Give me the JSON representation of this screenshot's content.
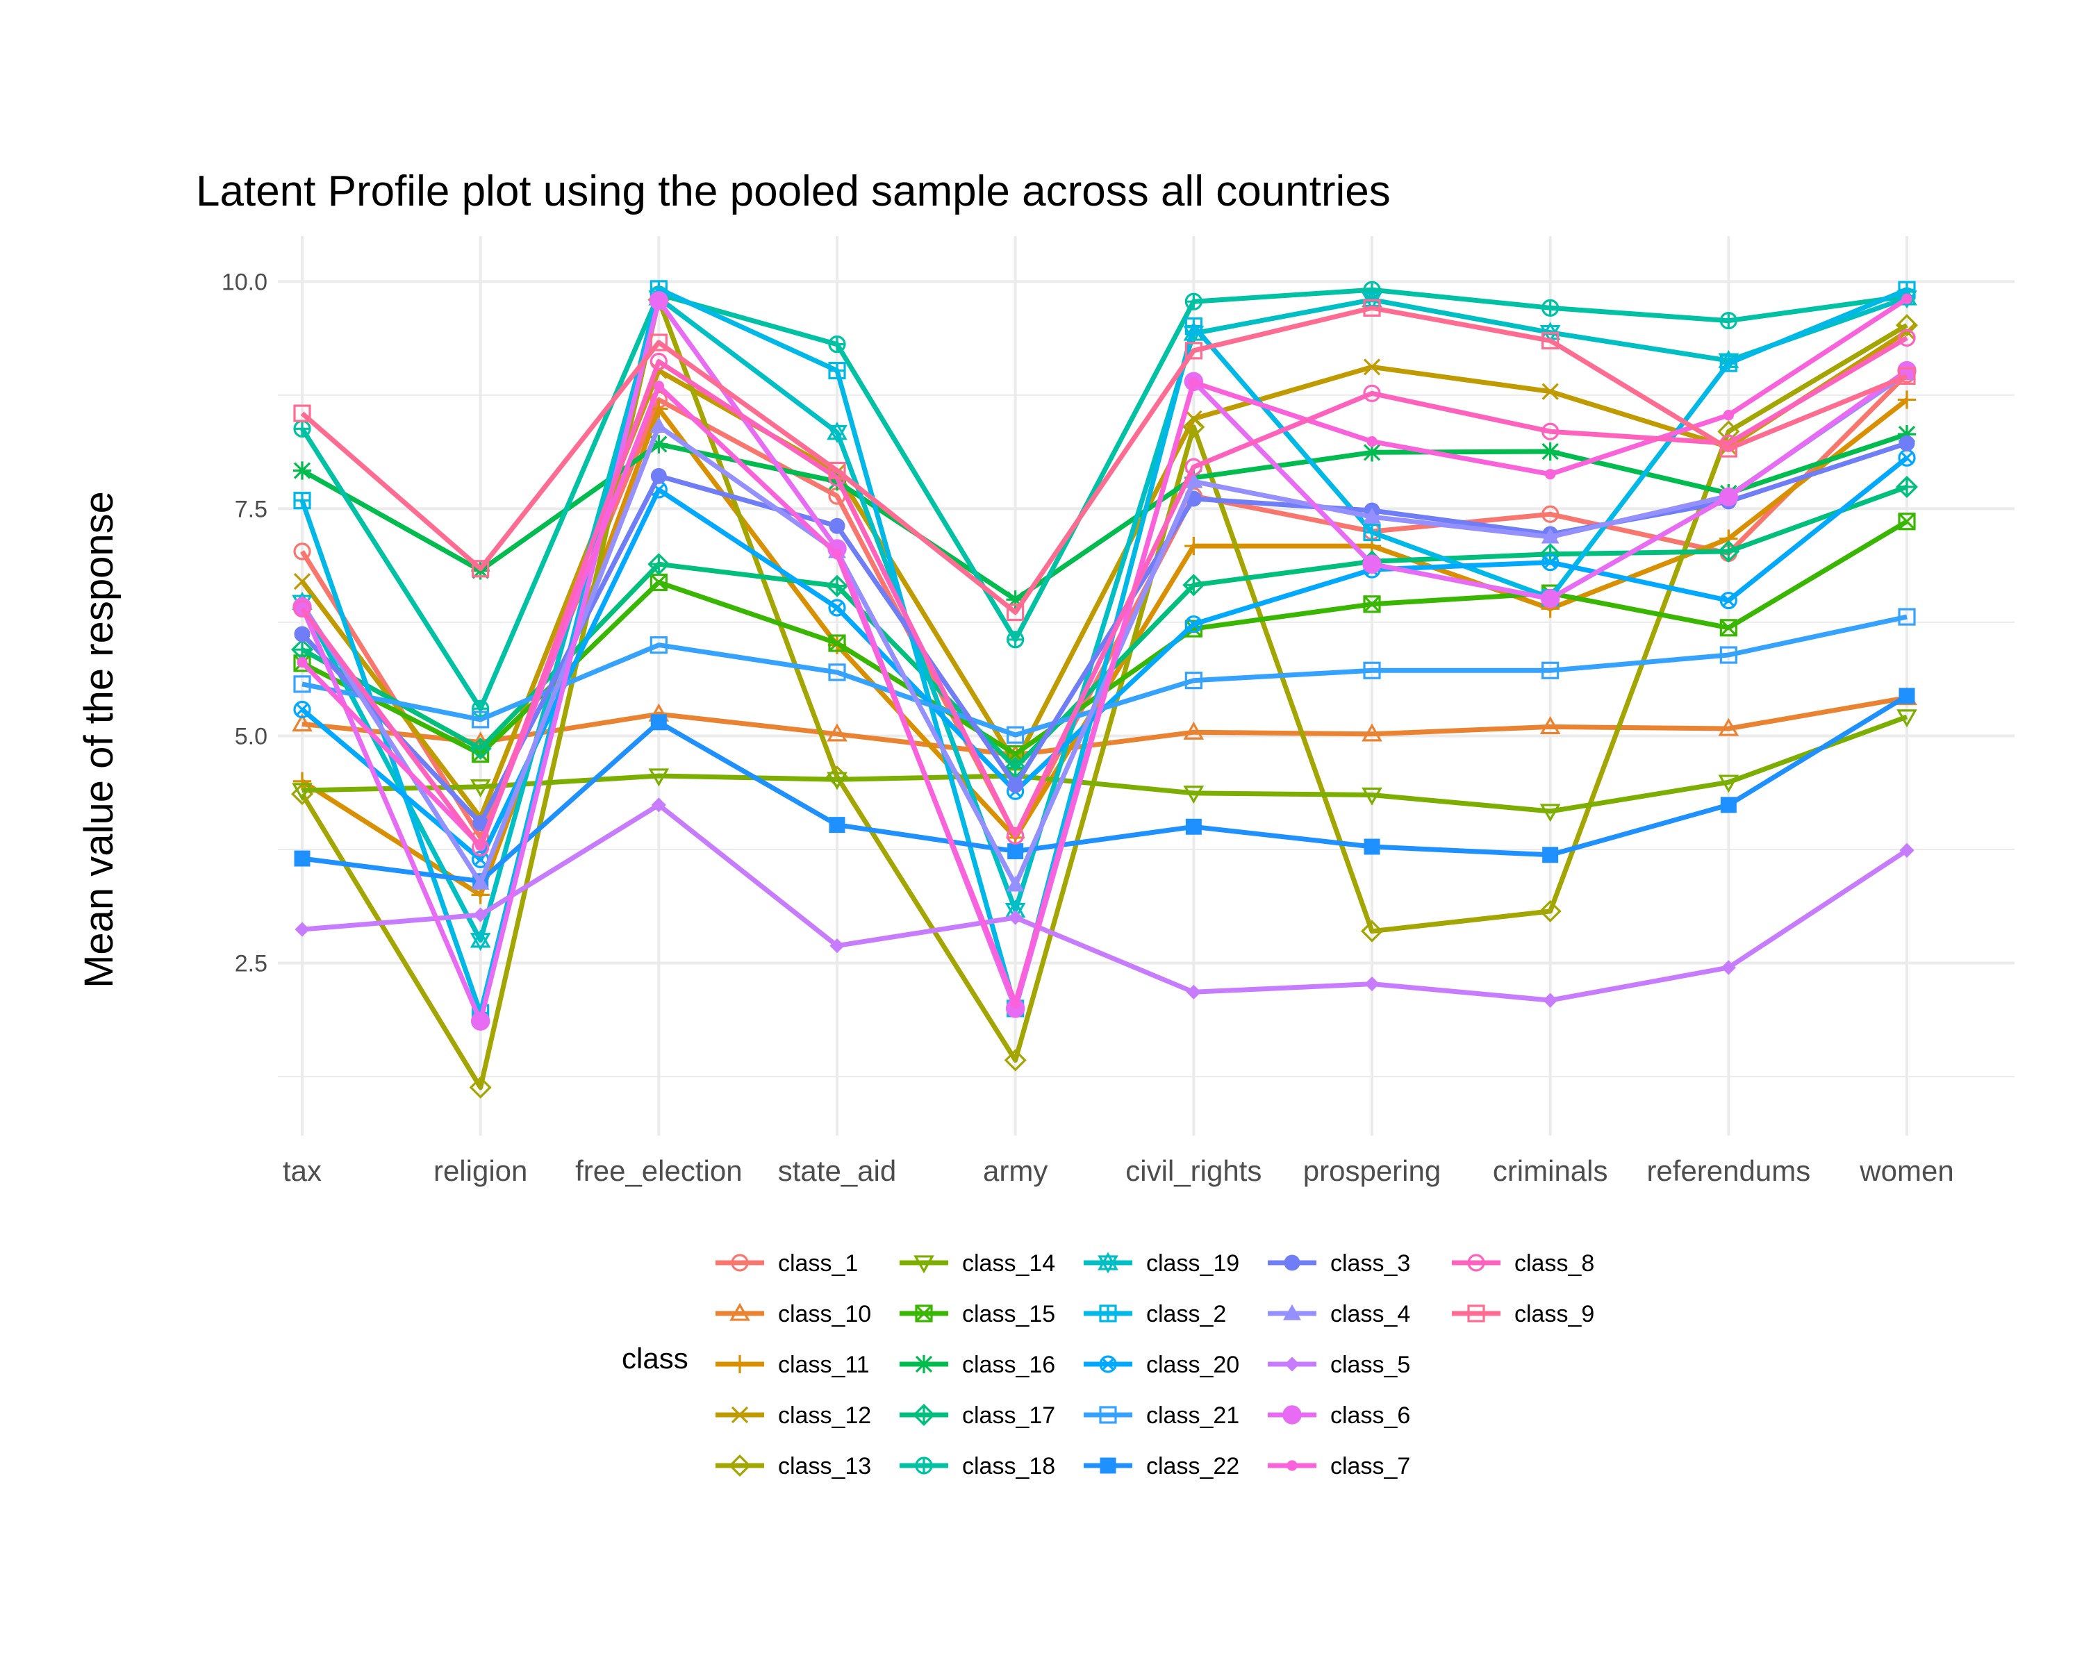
{
  "chart_data": {
    "type": "line",
    "title": "Latent Profile plot using the pooled sample across all countries",
    "xlabel": "",
    "ylabel": "Mean value of the response",
    "categories": [
      "tax",
      "religion",
      "free_election",
      "state_aid",
      "army",
      "civil_rights",
      "prospering",
      "criminals",
      "referendums",
      "women"
    ],
    "yticks": [
      "2.5",
      "5.0",
      "7.5",
      "10.0"
    ],
    "ylim": [
      0.6,
      10.5
    ],
    "grid": true,
    "legend_title": "class",
    "legend_position": "bottom",
    "series": [
      {
        "name": "class_1",
        "color": "#F8766D",
        "marker": "circle-open",
        "values": [
          7.03,
          3.88,
          8.7,
          7.64,
          3.9,
          7.64,
          7.25,
          7.44,
          7.01,
          8.98
        ]
      },
      {
        "name": "class_10",
        "color": "#EA8331",
        "marker": "triangle-open",
        "values": [
          5.13,
          4.93,
          5.24,
          5.02,
          4.79,
          5.04,
          5.02,
          5.1,
          5.08,
          5.42
        ]
      },
      {
        "name": "class_11",
        "color": "#D89000",
        "marker": "plus",
        "values": [
          4.5,
          3.25,
          8.6,
          6.0,
          3.88,
          7.09,
          7.09,
          6.4,
          7.17,
          8.7
        ]
      },
      {
        "name": "class_12",
        "color": "#C09B00",
        "marker": "x",
        "values": [
          6.7,
          4.1,
          9.02,
          7.9,
          4.7,
          8.49,
          9.06,
          8.79,
          8.18,
          9.45
        ]
      },
      {
        "name": "class_13",
        "color": "#A3A500",
        "marker": "diamond-open",
        "values": [
          4.36,
          1.13,
          9.8,
          4.55,
          1.43,
          8.4,
          2.85,
          3.07,
          8.35,
          9.52
        ]
      },
      {
        "name": "class_14",
        "color": "#7CAE00",
        "marker": "triangle-down-open",
        "values": [
          4.4,
          4.44,
          4.56,
          4.52,
          4.56,
          4.37,
          4.35,
          4.17,
          4.49,
          5.21
        ]
      },
      {
        "name": "class_15",
        "color": "#39B600",
        "marker": "square-x",
        "values": [
          5.8,
          4.8,
          6.69,
          6.02,
          4.8,
          6.18,
          6.45,
          6.57,
          6.19,
          7.36
        ]
      },
      {
        "name": "class_16",
        "color": "#00BB4E",
        "marker": "asterisk",
        "values": [
          7.92,
          6.82,
          8.21,
          7.8,
          6.5,
          7.84,
          8.12,
          8.13,
          7.67,
          8.32
        ]
      },
      {
        "name": "class_17",
        "color": "#00BF7D",
        "marker": "diamond-plus",
        "values": [
          5.95,
          4.86,
          6.89,
          6.65,
          4.65,
          6.66,
          6.92,
          7.0,
          7.03,
          7.74
        ]
      },
      {
        "name": "class_18",
        "color": "#00C1A3",
        "marker": "circle-plus",
        "values": [
          8.38,
          5.3,
          9.86,
          9.31,
          6.06,
          9.78,
          9.91,
          9.71,
          9.57,
          9.84
        ]
      },
      {
        "name": "class_19",
        "color": "#00BFC4",
        "marker": "star-of-david",
        "values": [
          6.47,
          2.75,
          9.82,
          8.34,
          3.08,
          9.43,
          9.8,
          9.44,
          9.13,
          9.82
        ]
      },
      {
        "name": "class_2",
        "color": "#00B8E7",
        "marker": "square-plus",
        "values": [
          7.59,
          1.95,
          9.92,
          9.02,
          2.0,
          9.51,
          7.24,
          6.52,
          9.1,
          9.91
        ]
      },
      {
        "name": "class_20",
        "color": "#00A9FF",
        "marker": "circle-x",
        "values": [
          5.29,
          3.64,
          7.71,
          6.41,
          4.39,
          6.23,
          6.83,
          6.91,
          6.49,
          8.06
        ]
      },
      {
        "name": "class_21",
        "color": "#35A2FF",
        "marker": "square-open",
        "values": [
          5.57,
          5.18,
          6.0,
          5.7,
          5.01,
          5.61,
          5.72,
          5.72,
          5.89,
          6.31
        ]
      },
      {
        "name": "class_22",
        "color": "#1E90FF",
        "marker": "square",
        "values": [
          3.65,
          3.4,
          5.15,
          4.02,
          3.73,
          4.0,
          3.78,
          3.69,
          4.24,
          5.44
        ]
      },
      {
        "name": "class_3",
        "color": "#6F7EF7",
        "marker": "circle",
        "values": [
          6.12,
          4.04,
          7.86,
          7.31,
          4.46,
          7.61,
          7.48,
          7.22,
          7.58,
          8.22
        ]
      },
      {
        "name": "class_4",
        "color": "#9590FF",
        "marker": "triangle",
        "values": [
          6.45,
          3.38,
          8.41,
          7.03,
          3.36,
          7.8,
          7.41,
          7.19,
          7.64,
          8.99
        ]
      },
      {
        "name": "class_5",
        "color": "#C77CFF",
        "marker": "diamond",
        "values": [
          2.87,
          3.03,
          4.24,
          2.69,
          3.0,
          2.18,
          2.27,
          2.09,
          2.45,
          3.74
        ]
      },
      {
        "name": "class_6",
        "color": "#E76BF3",
        "marker": "circle-large",
        "values": [
          6.42,
          1.86,
          9.79,
          7.06,
          2.0,
          8.9,
          6.89,
          6.51,
          7.63,
          9.02
        ]
      },
      {
        "name": "class_7",
        "color": "#FA62DB",
        "marker": "circle-small",
        "values": [
          5.81,
          3.79,
          8.85,
          7.0,
          2.06,
          8.89,
          8.24,
          7.88,
          8.53,
          9.81
        ]
      },
      {
        "name": "class_8",
        "color": "#FF62BC",
        "marker": "circle-open",
        "values": [
          6.4,
          3.77,
          9.12,
          7.84,
          3.9,
          7.96,
          8.77,
          8.35,
          8.22,
          9.38
        ]
      },
      {
        "name": "class_9",
        "color": "#FF6C91",
        "marker": "square-open",
        "values": [
          8.55,
          6.84,
          9.33,
          7.92,
          6.36,
          9.24,
          9.71,
          9.35,
          8.16,
          8.96
        ]
      }
    ]
  }
}
